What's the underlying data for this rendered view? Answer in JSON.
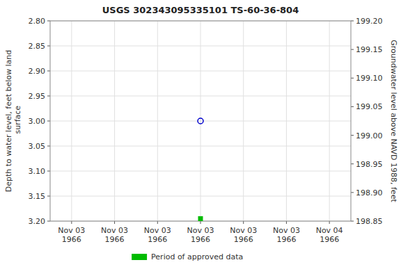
{
  "chart_data": {
    "type": "scatter",
    "title": "USGS 302343095335101 TS-60-36-804",
    "y_label": "Depth to water level, feet below land\n surface",
    "y2_label": "Groundwater level above NAVD 1988, feet",
    "categories": [
      "Nov 03\n1966",
      "Nov 03\n1966",
      "Nov 03\n1966",
      "Nov 03\n1966",
      "Nov 03\n1966",
      "Nov 03\n1966",
      "Nov 04\n1966"
    ],
    "series": [
      {
        "color": "#0000cc",
        "marker": "circle",
        "values": [
          null,
          null,
          null,
          3.0,
          null,
          null,
          null
        ]
      },
      {
        "name": "Period of approved data",
        "color": "#00bb00",
        "marker": "square",
        "values": [
          null,
          null,
          null,
          3.195,
          null,
          null,
          null
        ]
      }
    ],
    "ylim": [
      3.2,
      2.8
    ],
    "yticks": [
      {
        "value": 2.8,
        "label": "2.80"
      },
      2.85,
      {
        "value": 2.9,
        "label": "2.90"
      },
      2.95,
      {
        "value": 3,
        "label": "3.00"
      },
      3.05,
      {
        "value": 3.1,
        "label": "3.10"
      },
      3.15,
      {
        "value": 3.2,
        "label": "3.20"
      }
    ],
    "y2lim": [
      198.85,
      199.2
    ],
    "y2ticks": [
      {
        "value": 199.2,
        "label": "199.20"
      },
      199.15,
      {
        "value": 199.1,
        "label": "199.10"
      },
      199.05,
      {
        "value": 199,
        "label": "199.00"
      },
      198.95,
      {
        "value": 198.9,
        "label": "198.90"
      },
      198.85
    ],
    "grid": true,
    "legend": "bottom"
  }
}
